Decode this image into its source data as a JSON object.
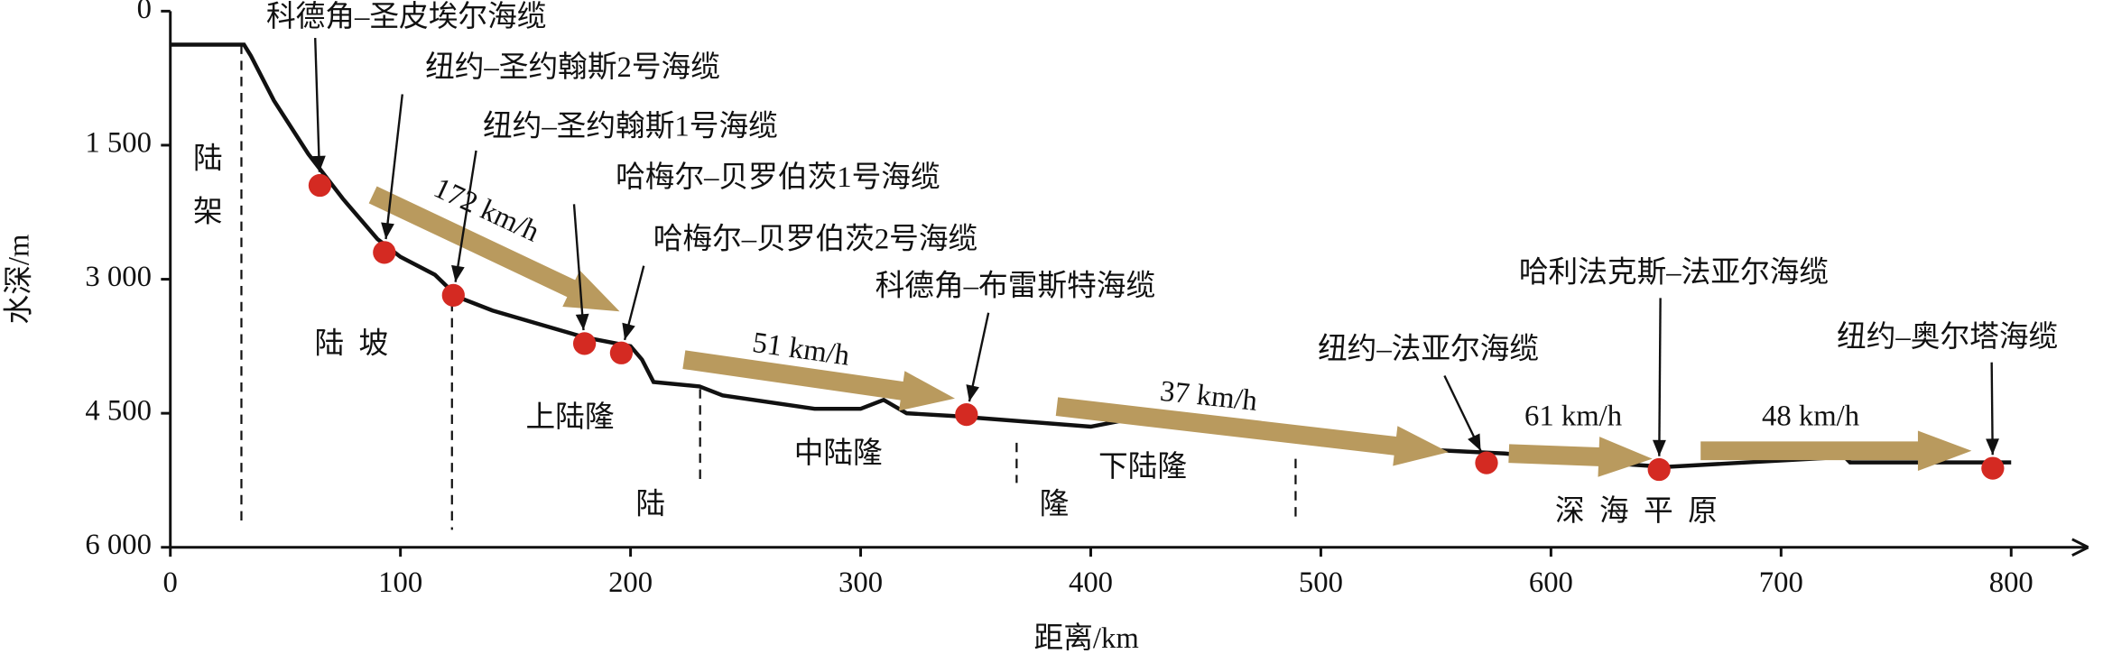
{
  "chart_data": {
    "type": "profile",
    "x_label": "距离/km",
    "y_label": "水深/m",
    "xlim": [
      0,
      830
    ],
    "ylim": [
      0,
      6000
    ],
    "xticks": [
      0,
      100,
      200,
      300,
      400,
      500,
      600,
      700,
      800
    ],
    "yticks": [
      0,
      {
        "value": 1500,
        "label": "1 500"
      },
      {
        "value": 3000,
        "label": "3 000"
      },
      {
        "value": 4500,
        "label": "4 500"
      },
      {
        "value": 6000,
        "label": "6 000"
      }
    ],
    "profile": {
      "color": "#111111",
      "x": [
        0,
        32,
        35,
        45,
        60,
        75,
        90,
        100,
        115,
        125,
        140,
        160,
        180,
        200,
        205,
        210,
        230,
        240,
        280,
        300,
        310,
        320,
        340,
        400,
        420,
        440,
        480,
        500,
        580,
        620,
        650,
        720,
        725,
        730,
        800
      ],
      "values": [
        375,
        375,
        500,
        1000,
        1600,
        2100,
        2550,
        2750,
        2950,
        3200,
        3350,
        3500,
        3650,
        3750,
        3900,
        4150,
        4200,
        4300,
        4450,
        4450,
        4350,
        4500,
        4530,
        4650,
        4550,
        4650,
        4750,
        4850,
        4950,
        5050,
        5100,
        5000,
        4920,
        5050,
        5050
      ]
    },
    "cables": {
      "color": "#d42a22",
      "names": [
        "科德角–圣皮埃尔海缆",
        "纽约–圣约翰斯2号海缆",
        "纽约–圣约翰斯1号海缆",
        "哈梅尔–贝罗伯茨1号海缆",
        "哈梅尔–贝罗伯茨2号海缆",
        "科德角–布雷斯特海缆",
        "纽约–法亚尔海缆",
        "哈利法克斯–法亚尔海缆",
        "纽约–奥尔塔海缆"
      ],
      "x": [
        65,
        93,
        123,
        180,
        196,
        346,
        572,
        647,
        792
      ],
      "values": [
        1950,
        2700,
        3180,
        3720,
        3825,
        4515,
        5055,
        5130,
        5115
      ]
    },
    "speeds": [
      "172 km/h",
      "51 km/h",
      "37 km/h",
      "61 km/h",
      "48 km/h"
    ],
    "speed_color": "#b99a5e",
    "regions": [
      "陆",
      "架",
      "陆  坡",
      "上陆隆",
      "中陆隆",
      "下陆隆",
      "陆",
      "隆",
      "深  海  平  原"
    ]
  }
}
